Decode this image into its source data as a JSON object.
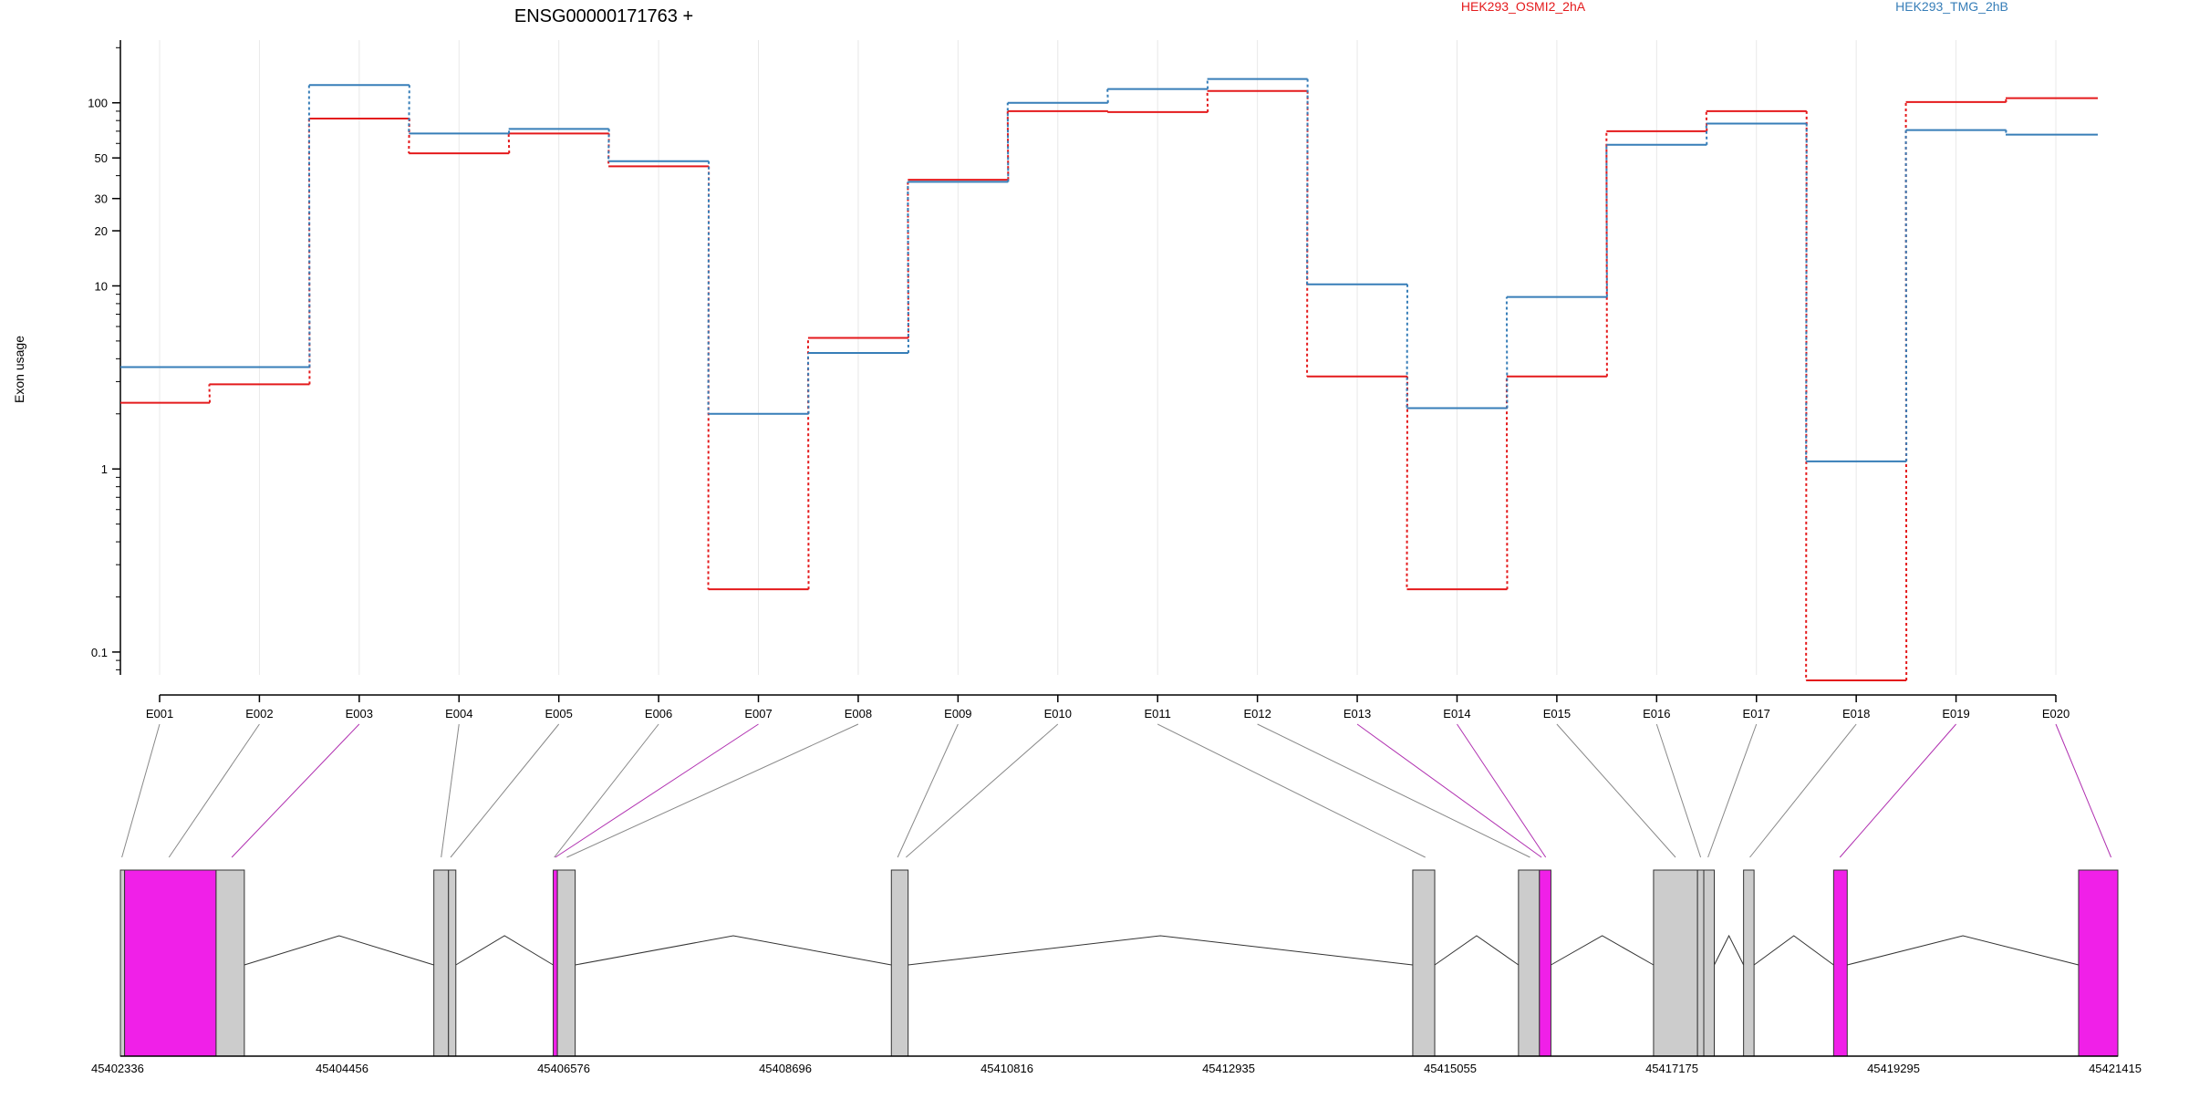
{
  "chart_data": {
    "type": "line",
    "title": "ENSG00000171763 +",
    "ylabel": "Exon usage",
    "xlabel": "",
    "yscale": "log",
    "ylim": [
      0.075,
      220
    ],
    "yticks": [
      {
        "value": 0.1,
        "label": "0.1"
      },
      {
        "value": 1,
        "label": "1"
      },
      {
        "value": 10,
        "label": "10"
      },
      {
        "value": 20,
        "label": "20"
      },
      {
        "value": 30,
        "label": "30"
      },
      {
        "value": 50,
        "label": "50"
      },
      {
        "value": 100,
        "label": "100"
      }
    ],
    "categories": [
      "E001",
      "E002",
      "E003",
      "E004",
      "E005",
      "E006",
      "E007",
      "E008",
      "E009",
      "E010",
      "E011",
      "E012",
      "E013",
      "E014",
      "E015",
      "E016",
      "E017",
      "E018",
      "E019",
      "E020"
    ],
    "legend": [
      "HEK293_OSMI2_2hA",
      "HEK293_TMG_2hB"
    ],
    "legend_placement": "top-right",
    "grid": true,
    "series": [
      {
        "name": "HEK293_OSMI2_2hA",
        "color": "#e41a1c",
        "values": [
          2.3,
          2.9,
          82,
          53,
          68,
          45,
          0.22,
          5.2,
          38,
          90,
          89,
          116,
          3.2,
          0.22,
          3.2,
          70,
          90,
          0.07,
          101,
          106
        ]
      },
      {
        "name": "HEK293_TMG_2hB",
        "color": "#377eb8",
        "values": [
          3.6,
          3.6,
          125,
          68,
          72,
          48,
          2.0,
          4.3,
          37,
          100,
          119,
          135,
          10.2,
          2.15,
          8.7,
          59,
          77,
          1.1,
          71,
          67
        ]
      }
    ],
    "gene_model": {
      "start_label": "45402336",
      "axis_labels": [
        "45402336",
        "45404456",
        "45406576",
        "45408696",
        "45410816",
        "45412935",
        "45415055",
        "45417175",
        "45419295",
        "45421415"
      ],
      "exons": [
        {
          "id": "E001",
          "start": 45402336,
          "end": 45402376,
          "highlight": false
        },
        {
          "id": "E002",
          "start": 45402376,
          "end": 45403250,
          "highlight": true
        },
        {
          "id": "E003",
          "start": 45403250,
          "end": 45403520,
          "highlight": false
        },
        {
          "id": "E004",
          "start": 45405330,
          "end": 45405470,
          "highlight": false
        },
        {
          "id": "E005",
          "start": 45405470,
          "end": 45405540,
          "highlight": false
        },
        {
          "id": "E006",
          "start": 45406470,
          "end": 45406510,
          "highlight": true
        },
        {
          "id": "E007",
          "start": 45406510,
          "end": 45406680,
          "highlight": false
        },
        {
          "id": "E008",
          "start": 45409700,
          "end": 45409860,
          "highlight": false
        },
        {
          "id": "E009",
          "start": 45414680,
          "end": 45414890,
          "highlight": false
        },
        {
          "id": "E010",
          "start": 45415690,
          "end": 45415890,
          "highlight": false
        },
        {
          "id": "E011",
          "start": 45415890,
          "end": 45416000,
          "highlight": true
        },
        {
          "id": "E012",
          "start": 45416980,
          "end": 45417400,
          "highlight": false
        },
        {
          "id": "E013",
          "start": 45417400,
          "end": 45417460,
          "highlight": false
        },
        {
          "id": "E014",
          "start": 45417460,
          "end": 45417560,
          "highlight": false
        },
        {
          "id": "E015",
          "start": 45417840,
          "end": 45417940,
          "highlight": false
        },
        {
          "id": "E016",
          "start": 45418700,
          "end": 45418830,
          "highlight": true
        },
        {
          "id": "E017",
          "start": 45421040,
          "end": 45421415,
          "highlight": true
        }
      ],
      "connectors": [
        {
          "exon": "E001",
          "pos": 45402350,
          "color": "#888888"
        },
        {
          "exon": "E002",
          "pos": 45402800,
          "color": "#888888"
        },
        {
          "exon": "E003",
          "pos": 45403400,
          "color": "#b030b0"
        },
        {
          "exon": "E004",
          "pos": 45405400,
          "color": "#888888"
        },
        {
          "exon": "E005",
          "pos": 45405490,
          "color": "#888888"
        },
        {
          "exon": "E006",
          "pos": 45406480,
          "color": "#888888"
        },
        {
          "exon": "E007",
          "pos": 45406490,
          "color": "#b030b0"
        },
        {
          "exon": "E008",
          "pos": 45406600,
          "color": "#888888"
        },
        {
          "exon": "E009",
          "pos": 45409760,
          "color": "#888888"
        },
        {
          "exon": "E010",
          "pos": 45409840,
          "color": "#888888"
        },
        {
          "exon": "E011",
          "pos": 45414800,
          "color": "#888888"
        },
        {
          "exon": "E012",
          "pos": 45415800,
          "color": "#888888"
        },
        {
          "exon": "E013",
          "pos": 45415910,
          "color": "#b030b0"
        },
        {
          "exon": "E014",
          "pos": 45415950,
          "color": "#b030b0"
        },
        {
          "exon": "E015",
          "pos": 45417190,
          "color": "#888888"
        },
        {
          "exon": "E016",
          "pos": 45417430,
          "color": "#888888"
        },
        {
          "exon": "E017",
          "pos": 45417500,
          "color": "#888888"
        },
        {
          "exon": "E018",
          "pos": 45417900,
          "color": "#888888"
        },
        {
          "exon": "E019",
          "pos": 45418760,
          "color": "#b030b0"
        },
        {
          "exon": "E020",
          "pos": 45421350,
          "color": "#b030b0"
        }
      ],
      "introns": [
        {
          "from": 45403520,
          "to": 45405330
        },
        {
          "from": 45405540,
          "to": 45406470
        },
        {
          "from": 45406680,
          "to": 45409700
        },
        {
          "from": 45409860,
          "to": 45414680
        },
        {
          "from": 45414890,
          "to": 45415690
        },
        {
          "from": 45416000,
          "to": 45416980
        },
        {
          "from": 45417560,
          "to": 45417840
        },
        {
          "from": 45417940,
          "to": 45418700
        },
        {
          "from": 45418830,
          "to": 45421040
        }
      ]
    },
    "colors": {
      "highlight_exon": "#f020e8",
      "plain_exon": "#cccccc"
    }
  }
}
